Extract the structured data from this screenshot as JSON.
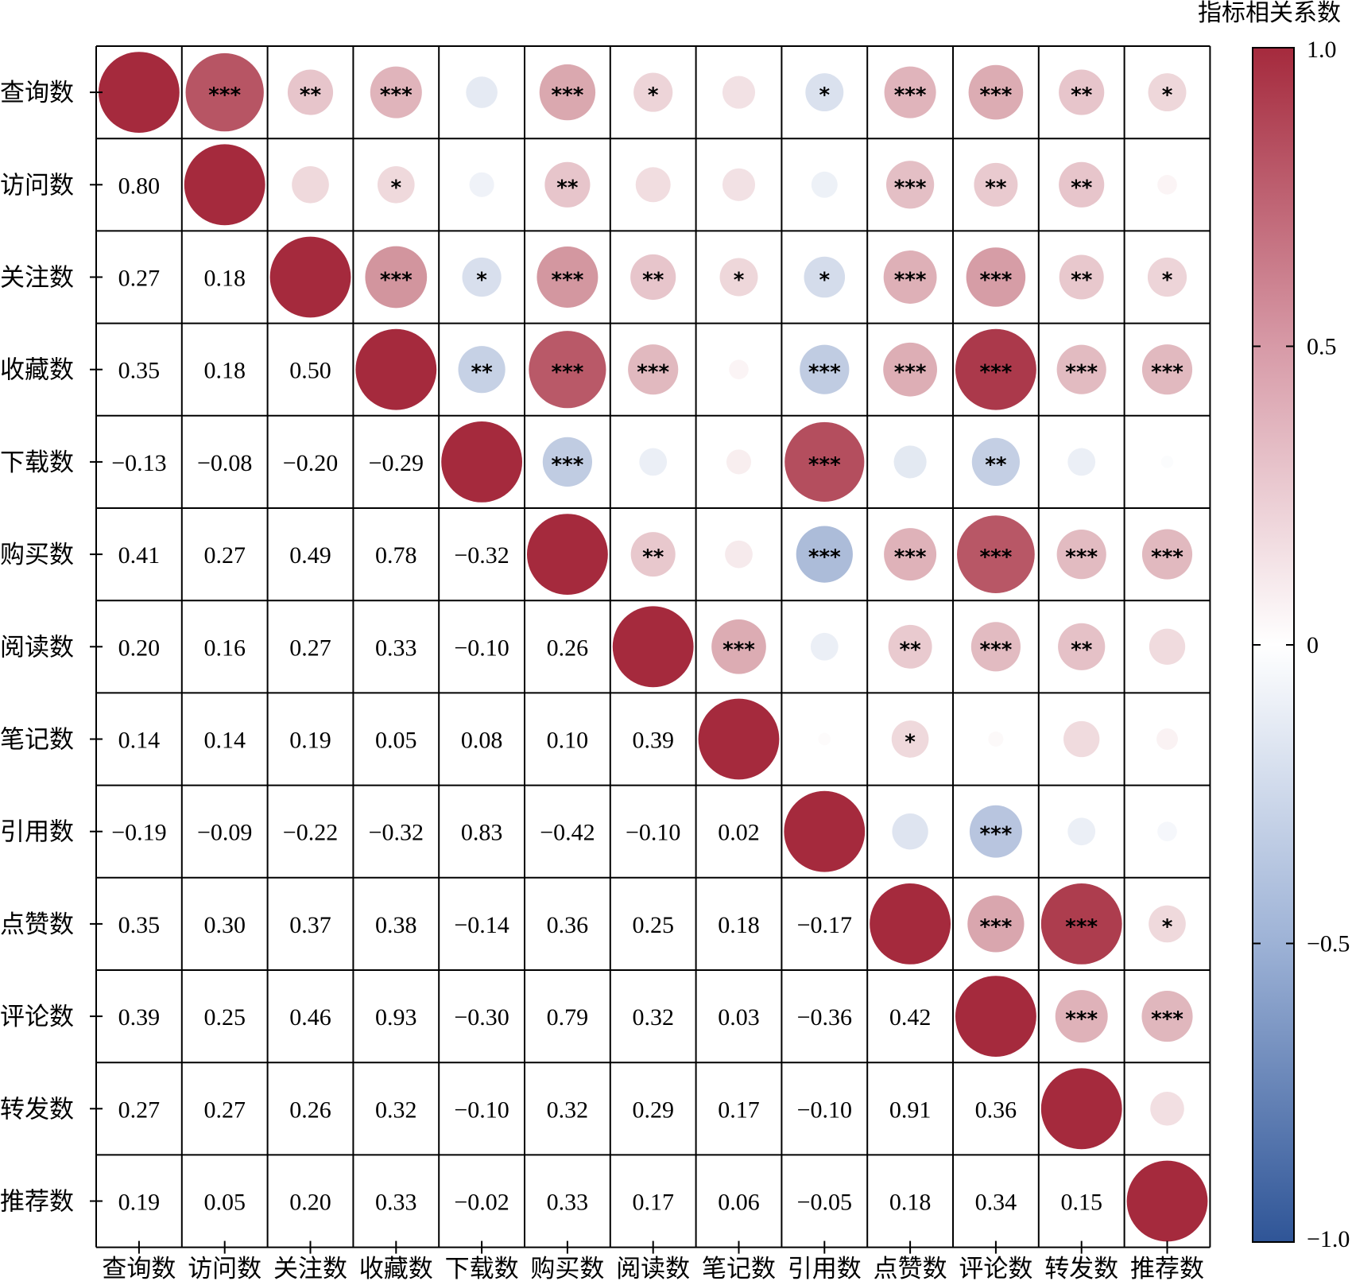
{
  "chart_data": {
    "type": "heatmap",
    "title": "",
    "colorbar_label": "指标相关系数",
    "variables": [
      "查询数",
      "访问数",
      "关注数",
      "收藏数",
      "下载数",
      "购买数",
      "阅读数",
      "笔记数",
      "引用数",
      "点赞数",
      "评论数",
      "转发数",
      "推荐数"
    ],
    "lower_triangle_values": [
      [],
      [
        "0.80"
      ],
      [
        "0.27",
        "0.18"
      ],
      [
        "0.35",
        "0.18",
        "0.50"
      ],
      [
        "−0.13",
        "−0.08",
        "−0.20",
        "−0.29"
      ],
      [
        "0.41",
        "0.27",
        "0.49",
        "0.78",
        "−0.32"
      ],
      [
        "0.20",
        "0.16",
        "0.27",
        "0.33",
        "−0.10",
        "0.26"
      ],
      [
        "0.14",
        "0.14",
        "0.19",
        "0.05",
        "0.08",
        "0.10",
        "0.39"
      ],
      [
        "−0.19",
        "−0.09",
        "−0.22",
        "−0.32",
        "0.83",
        "−0.42",
        "−0.10",
        "0.02"
      ],
      [
        "0.35",
        "0.30",
        "0.37",
        "0.38",
        "−0.14",
        "0.36",
        "0.25",
        "0.18",
        "−0.17"
      ],
      [
        "0.39",
        "0.25",
        "0.46",
        "0.93",
        "−0.30",
        "0.79",
        "0.32",
        "0.03",
        "−0.36",
        "0.42"
      ],
      [
        "0.27",
        "0.27",
        "0.26",
        "0.32",
        "−0.10",
        "0.32",
        "0.29",
        "0.17",
        "−0.10",
        "0.91",
        "0.36"
      ],
      [
        "0.19",
        "0.05",
        "0.20",
        "0.33",
        "−0.02",
        "0.33",
        "0.17",
        "0.06",
        "−0.05",
        "0.18",
        "0.34",
        "0.15"
      ]
    ],
    "upper_significance": [
      [
        "",
        "***",
        "**",
        "***",
        "",
        "***",
        "*",
        "",
        "*",
        "***",
        "***",
        "**",
        "*"
      ],
      [
        "",
        "",
        "",
        "*",
        "",
        "**",
        "",
        "",
        "",
        "***",
        "**",
        "**",
        ""
      ],
      [
        "",
        "",
        "",
        "***",
        "*",
        "***",
        "**",
        "*",
        "*",
        "***",
        "***",
        "**",
        "*"
      ],
      [
        "",
        "",
        "",
        "",
        "**",
        "***",
        "***",
        "",
        "***",
        "***",
        "***",
        "***",
        "***"
      ],
      [
        "",
        "",
        "",
        "",
        "",
        "***",
        "",
        "",
        "***",
        "",
        "**",
        "",
        ""
      ],
      [
        "",
        "",
        "",
        "",
        "",
        "",
        "**",
        "",
        "***",
        "***",
        "***",
        "***",
        "***"
      ],
      [
        "",
        "",
        "",
        "",
        "",
        "",
        "",
        "***",
        "",
        "**",
        "***",
        "**",
        ""
      ],
      [
        "",
        "",
        "",
        "",
        "",
        "",
        "",
        "",
        "",
        "*",
        "",
        "",
        ""
      ],
      [
        "",
        "",
        "",
        "",
        "",
        "",
        "",
        "",
        "",
        "",
        "***",
        "",
        ""
      ],
      [
        "",
        "",
        "",
        "",
        "",
        "",
        "",
        "",
        "",
        "",
        "***",
        "***",
        "*"
      ],
      [
        "",
        "",
        "",
        "",
        "",
        "",
        "",
        "",
        "",
        "",
        "",
        "***",
        "***"
      ],
      [
        "",
        "",
        "",
        "",
        "",
        "",
        "",
        "",
        "",
        "",
        "",
        "",
        ""
      ],
      [
        "",
        "",
        "",
        "",
        "",
        "",
        "",
        "",
        "",
        "",
        "",
        "",
        ""
      ]
    ],
    "colorbar_ticks": [
      "1.0",
      "0.5",
      "0",
      "−0.5",
      "−1.0"
    ],
    "color_range": [
      -1.0,
      1.0
    ],
    "colormap": {
      "negative": "#3a5fa5",
      "zero": "#ffffff",
      "positive": "#a52a3d"
    }
  }
}
